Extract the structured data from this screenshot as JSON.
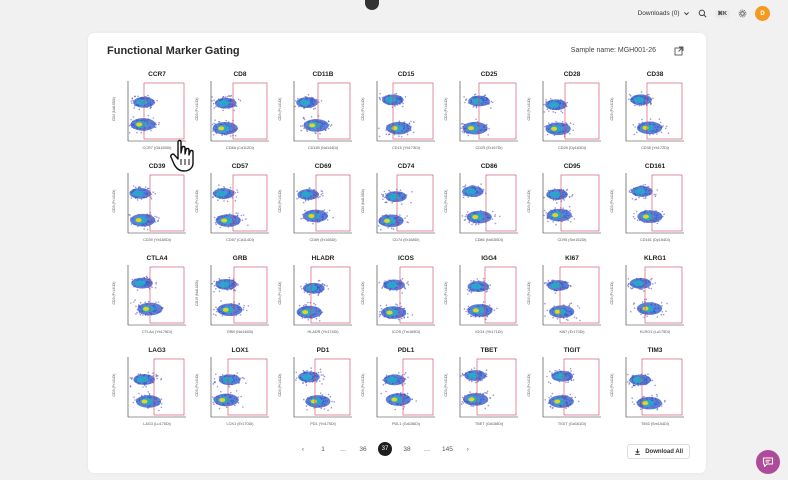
{
  "topbar": {
    "downloads_label": "Downloads (0)",
    "shortcut": "⌘K",
    "avatar_initials": "D"
  },
  "card": {
    "title": "Functional Marker Gating",
    "sample_label": "Sample name: MGH001-26",
    "download_all_label": "Download All"
  },
  "pagination": {
    "prev": "‹",
    "pages": [
      "1",
      "…",
      "36",
      "37",
      "38",
      "…",
      "145"
    ],
    "active": "37",
    "next": "›"
  },
  "accent_color": "#f39a21",
  "gate_color": "#d0415a",
  "plots": [
    {
      "name": "CCR7",
      "x": "CCR7 (Gd155Di)",
      "y": "CD4 (Nd145Di)"
    },
    {
      "name": "CD8",
      "x": "CD8A (Cd112Di)",
      "y": "CD3 (Pr141Di)"
    },
    {
      "name": "CD11B",
      "x": "CD11B (Nd144Di)",
      "y": "CD3 (Pr141Di)"
    },
    {
      "name": "CD15",
      "x": "CD15 (Yb173Di)",
      "y": "CD3 (Pr141Di)"
    },
    {
      "name": "CD25",
      "x": "CD25 (Er167Di)",
      "y": "CD3 (Pr141Di)"
    },
    {
      "name": "CD28",
      "x": "CD28 (Dy163Di)",
      "y": "CD3 (Pr141Di)"
    },
    {
      "name": "CD38",
      "x": "CD38 (Yb172Di)",
      "y": "CD3 (Pr141Di)"
    },
    {
      "name": "CD39",
      "x": "CD39 (Yb160Di)",
      "y": "CD3 (Pr141Di)"
    },
    {
      "name": "CD57",
      "x": "CD57 (Cd114Di)",
      "y": "CD3 (Pr141Di)"
    },
    {
      "name": "CD69",
      "x": "CD69 (Er166Di)",
      "y": "CD3 (Pr141Di)"
    },
    {
      "name": "CD74",
      "x": "CD74 (Er168Di)",
      "y": "CD4 (Nd145Di)"
    },
    {
      "name": "CD86",
      "x": "CD86 (Nd150Di)",
      "y": "CD3 (Pr141Di)"
    },
    {
      "name": "CD95",
      "x": "CD95 (Sm152Di)",
      "y": "CD3 (Pr141Di)"
    },
    {
      "name": "CD161",
      "x": "CD161 (Dy164Di)",
      "y": "CD3 (Pr141Di)"
    },
    {
      "name": "CTLA4",
      "x": "CTLA4 (Yb176Di)",
      "y": "CD3 (Pr141Di)"
    },
    {
      "name": "GRB",
      "x": "GRB (Nd146Di)",
      "y": "CD19 (Nd142Di)"
    },
    {
      "name": "HLADR",
      "x": "HLADR (Yb174Di)",
      "y": "CD3 (Pr141Di)"
    },
    {
      "name": "ICOS",
      "x": "ICOS (Tm169Di)",
      "y": "CD3 (Pr141Di)"
    },
    {
      "name": "IGG4",
      "x": "IGG4 (Yb171Di)",
      "y": "CD3 (Pr141Di)"
    },
    {
      "name": "KI67",
      "x": "KI67 (Er170Di)",
      "y": "CD3 (Pr141Di)"
    },
    {
      "name": "KLRG1",
      "x": "KLRG1 (Lu175Di)",
      "y": "CD3 (Pr141Di)"
    },
    {
      "name": "LAG3",
      "x": "LAG3 (Lu175Di)",
      "y": "CD3 (Pr141Di)"
    },
    {
      "name": "LOX1",
      "x": "LOX1 (Er170Di)",
      "y": "CD3 (Pr141Di)"
    },
    {
      "name": "PD1",
      "x": "PD1 (Yb175Di)",
      "y": "CD3 (Pr141Di)"
    },
    {
      "name": "PDL1",
      "x": "PDL1 (Gd156Di)",
      "y": "CD3 (Pr141Di)"
    },
    {
      "name": "TBET",
      "x": "TBET (Gd158Di)",
      "y": "CD3 (Pr141Di)"
    },
    {
      "name": "TIGIT",
      "x": "TIGIT (Gd161Di)",
      "y": "CD3 (Pr141Di)"
    },
    {
      "name": "TIM3",
      "x": "TIM3 (Sm154Di)",
      "y": "CD3 (Pr141Di)"
    }
  ]
}
